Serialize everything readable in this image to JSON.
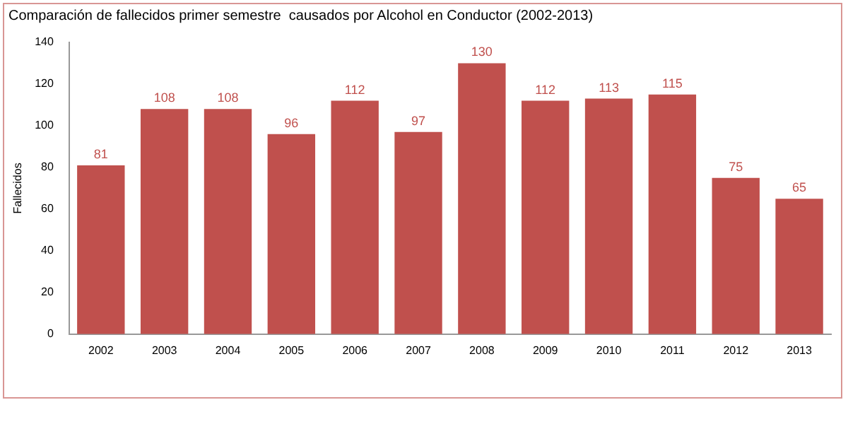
{
  "chart_data": {
    "type": "bar",
    "title": "Comparación de fallecidos primer semestre  causados por Alcohol en Conductor (2002-2013)",
    "ylabel": "Fallecidos",
    "categories": [
      "2002",
      "2003",
      "2004",
      "2005",
      "2006",
      "2007",
      "2008",
      "2009",
      "2010",
      "2011",
      "2012",
      "2013"
    ],
    "values": [
      81,
      108,
      108,
      96,
      112,
      97,
      130,
      112,
      113,
      115,
      75,
      65
    ],
    "color": "#c0504d",
    "ylim": [
      0,
      140
    ],
    "yticks": [
      0,
      20,
      40,
      60,
      80,
      100,
      120,
      140
    ],
    "data_labels": true,
    "grid": false,
    "legend": false
  }
}
